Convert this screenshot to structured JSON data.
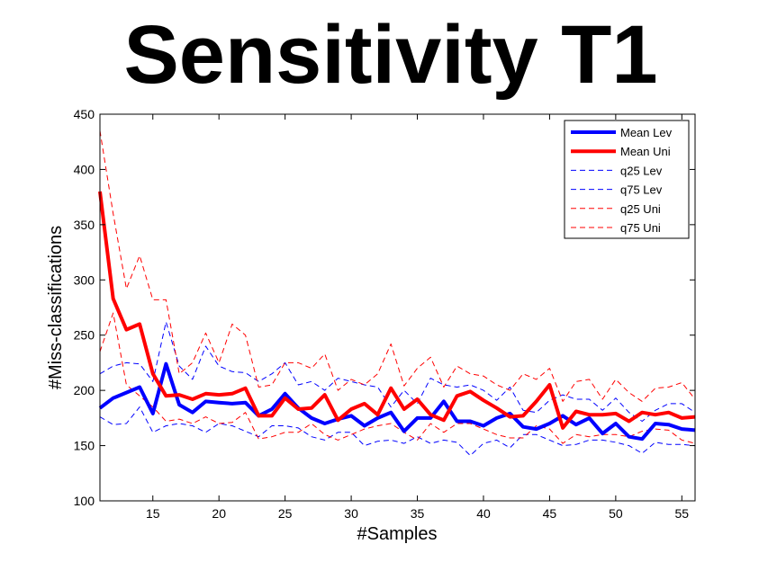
{
  "chart_data": {
    "type": "line",
    "title": "Sensitivity T1",
    "xlabel": "#Samples",
    "ylabel": "#Miss-classifications",
    "xlim": [
      11,
      56
    ],
    "ylim": [
      100,
      450
    ],
    "xticks": [
      15,
      20,
      25,
      30,
      35,
      40,
      45,
      50,
      55
    ],
    "yticks": [
      100,
      150,
      200,
      250,
      300,
      350,
      400,
      450
    ],
    "grid": false,
    "legend_position": "top-right",
    "x": [
      11,
      12,
      13,
      14,
      15,
      16,
      17,
      18,
      19,
      20,
      21,
      22,
      23,
      24,
      25,
      26,
      27,
      28,
      29,
      30,
      31,
      32,
      33,
      34,
      35,
      36,
      37,
      38,
      39,
      40,
      41,
      42,
      43,
      44,
      45,
      46,
      47,
      48,
      49,
      50,
      51,
      52,
      53,
      54,
      55,
      56
    ],
    "series": [
      {
        "name": "Mean Lev",
        "color": "#0000ff",
        "style": "solid",
        "width": "thick",
        "values": [
          184,
          193,
          198,
          203,
          179,
          224,
          187,
          180,
          190,
          189,
          188,
          189,
          177,
          183,
          197,
          184,
          175,
          170,
          174,
          177,
          168,
          175,
          180,
          163,
          175,
          175,
          190,
          172,
          172,
          168,
          175,
          179,
          167,
          165,
          170,
          177,
          169,
          175,
          161,
          170,
          158,
          156,
          170,
          169,
          165,
          164
        ]
      },
      {
        "name": "Mean Uni",
        "color": "#ff0000",
        "style": "solid",
        "width": "thick",
        "values": [
          380,
          283,
          255,
          260,
          215,
          195,
          196,
          192,
          197,
          196,
          197,
          202,
          177,
          177,
          193,
          183,
          184,
          196,
          173,
          183,
          188,
          178,
          202,
          183,
          192,
          178,
          173,
          195,
          199,
          191,
          184,
          176,
          177,
          190,
          205,
          166,
          181,
          178,
          178,
          179,
          172,
          180,
          178,
          180,
          175,
          176
        ]
      },
      {
        "name": "q25 Lev",
        "color": "#0000ff",
        "style": "dashed",
        "width": "thin",
        "values": [
          176,
          169,
          170,
          185,
          162,
          168,
          170,
          168,
          162,
          170,
          168,
          163,
          158,
          168,
          168,
          166,
          158,
          155,
          162,
          162,
          150,
          154,
          155,
          152,
          158,
          152,
          155,
          153,
          141,
          152,
          155,
          148,
          160,
          160,
          155,
          150,
          151,
          155,
          155,
          153,
          150,
          143,
          153,
          151,
          151,
          150
        ]
      },
      {
        "name": "q75 Lev",
        "color": "#0000ff",
        "style": "dashed",
        "width": "thin",
        "values": [
          215,
          222,
          225,
          224,
          208,
          262,
          222,
          210,
          240,
          222,
          217,
          216,
          208,
          215,
          225,
          205,
          208,
          200,
          211,
          208,
          205,
          203,
          185,
          200,
          188,
          211,
          205,
          203,
          205,
          200,
          191,
          203,
          182,
          180,
          191,
          196,
          192,
          192,
          182,
          193,
          180,
          172,
          182,
          188,
          188,
          180
        ]
      },
      {
        "name": "q25 Uni",
        "color": "#ff0000",
        "style": "dashed",
        "width": "thin",
        "values": [
          235,
          270,
          205,
          195,
          185,
          172,
          174,
          170,
          176,
          170,
          171,
          180,
          156,
          158,
          162,
          162,
          170,
          160,
          155,
          160,
          165,
          168,
          170,
          162,
          155,
          170,
          162,
          170,
          170,
          165,
          160,
          157,
          157,
          168,
          165,
          152,
          160,
          158,
          160,
          160,
          158,
          163,
          165,
          164,
          155,
          152
        ]
      },
      {
        "name": "q75 Uni",
        "color": "#ff0000",
        "style": "dashed",
        "width": "thin",
        "values": [
          435,
          360,
          292,
          322,
          282,
          282,
          215,
          225,
          252,
          225,
          260,
          250,
          203,
          205,
          225,
          225,
          220,
          233,
          200,
          210,
          205,
          215,
          242,
          204,
          220,
          230,
          203,
          222,
          215,
          213,
          205,
          200,
          215,
          210,
          220,
          190,
          208,
          210,
          192,
          210,
          198,
          190,
          202,
          203,
          207,
          192
        ]
      }
    ]
  }
}
